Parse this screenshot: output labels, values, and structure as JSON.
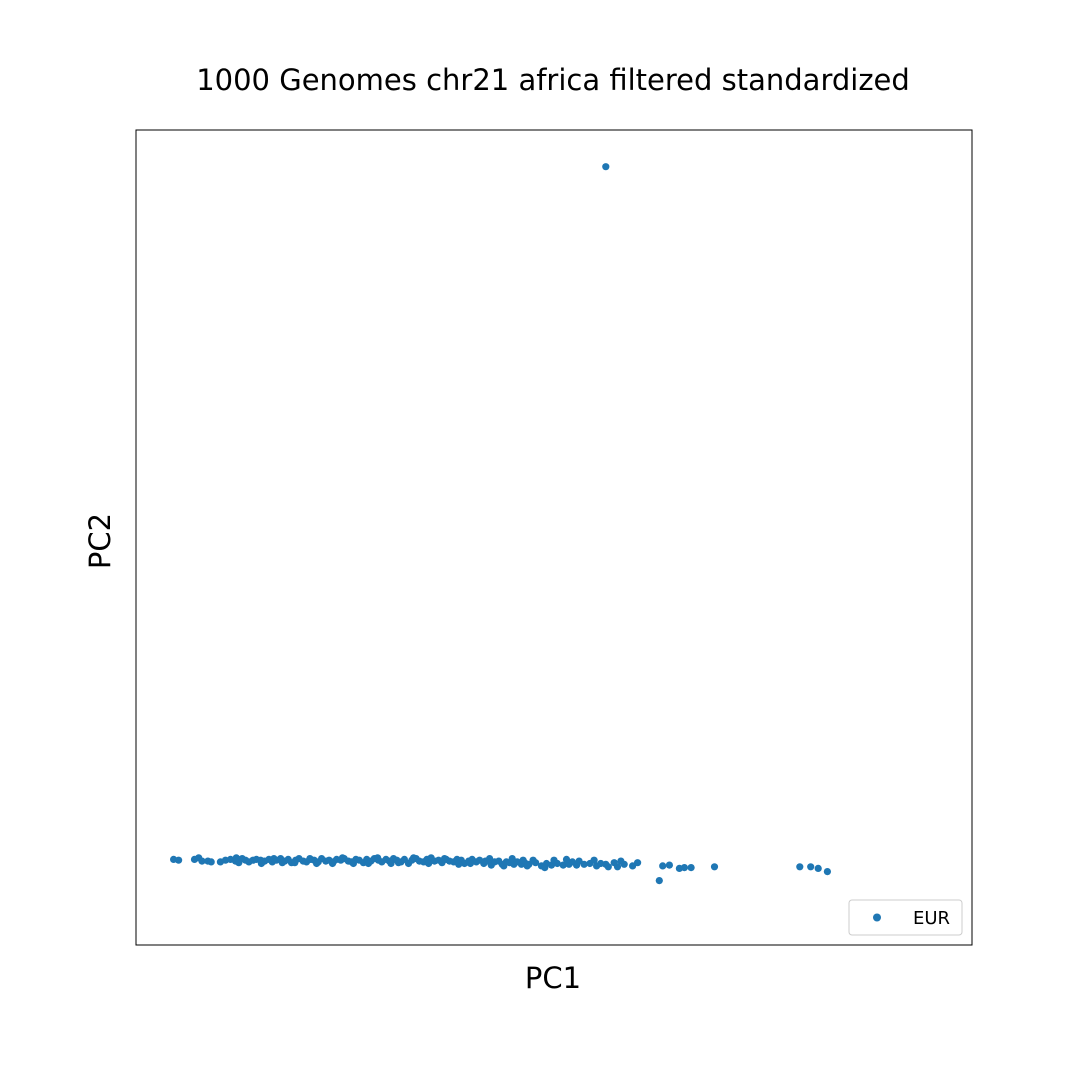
{
  "chart_data": {
    "type": "scatter",
    "title": "1000 Genomes chr21 africa filtered standardized",
    "xlabel": "PC1",
    "ylabel": "PC2",
    "xlim": [
      0,
      100
    ],
    "ylim": [
      0,
      100
    ],
    "ticks_shown": false,
    "grid": false,
    "legend_position": "bottom-right",
    "series": [
      {
        "name": "EUR",
        "color": "#1f77b4",
        "points": [
          [
            4.5,
            10.5
          ],
          [
            5.1,
            10.4
          ],
          [
            7.0,
            10.5
          ],
          [
            7.5,
            10.7
          ],
          [
            7.9,
            10.3
          ],
          [
            8.6,
            10.3
          ],
          [
            10.1,
            10.2
          ],
          [
            10.7,
            10.4
          ],
          [
            11.3,
            10.5
          ],
          [
            11.9,
            10.3
          ],
          [
            12.3,
            10.1
          ],
          [
            12.7,
            10.6
          ],
          [
            13.1,
            10.4
          ],
          [
            13.5,
            10.2
          ],
          [
            14.0,
            10.4
          ],
          [
            14.4,
            10.5
          ],
          [
            14.9,
            10.4
          ],
          [
            15.4,
            10.3
          ],
          [
            15.9,
            10.5
          ],
          [
            16.3,
            10.2
          ],
          [
            16.8,
            10.4
          ],
          [
            17.3,
            10.6
          ],
          [
            17.8,
            10.3
          ],
          [
            18.2,
            10.5
          ],
          [
            18.6,
            10.1
          ],
          [
            19.1,
            10.4
          ],
          [
            19.5,
            10.6
          ],
          [
            20.0,
            10.3
          ],
          [
            20.4,
            10.2
          ],
          [
            20.9,
            10.5
          ],
          [
            21.3,
            10.4
          ],
          [
            21.8,
            10.2
          ],
          [
            22.2,
            10.6
          ],
          [
            22.7,
            10.3
          ],
          [
            23.1,
            10.4
          ],
          [
            23.6,
            10.2
          ],
          [
            24.0,
            10.5
          ],
          [
            24.5,
            10.4
          ],
          [
            24.9,
            10.6
          ],
          [
            25.4,
            10.3
          ],
          [
            25.8,
            10.2
          ],
          [
            26.3,
            10.5
          ],
          [
            26.7,
            10.4
          ],
          [
            27.2,
            10.1
          ],
          [
            27.6,
            10.5
          ],
          [
            28.1,
            10.3
          ],
          [
            28.5,
            10.6
          ],
          [
            29.0,
            10.4
          ],
          [
            29.4,
            10.2
          ],
          [
            29.9,
            10.5
          ],
          [
            30.3,
            10.3
          ],
          [
            30.8,
            10.6
          ],
          [
            31.2,
            10.4
          ],
          [
            31.7,
            10.2
          ],
          [
            32.1,
            10.5
          ],
          [
            32.6,
            10.0
          ],
          [
            33.0,
            10.4
          ],
          [
            33.5,
            10.6
          ],
          [
            33.9,
            10.3
          ],
          [
            34.4,
            10.2
          ],
          [
            34.8,
            10.5
          ],
          [
            35.3,
            10.7
          ],
          [
            35.7,
            10.3
          ],
          [
            36.2,
            10.4
          ],
          [
            36.6,
            10.1
          ],
          [
            37.1,
            10.5
          ],
          [
            37.5,
            10.3
          ],
          [
            38.0,
            10.2
          ],
          [
            38.4,
            10.5
          ],
          [
            38.9,
            10.4
          ],
          [
            39.3,
            10.0
          ],
          [
            39.8,
            10.3
          ],
          [
            40.2,
            10.5
          ],
          [
            40.7,
            10.2
          ],
          [
            41.1,
            10.4
          ],
          [
            41.6,
            10.0
          ],
          [
            42.0,
            10.3
          ],
          [
            42.5,
            9.8
          ],
          [
            42.9,
            10.2
          ],
          [
            43.4,
            10.3
          ],
          [
            43.8,
            9.9
          ],
          [
            44.3,
            10.2
          ],
          [
            44.7,
            10.1
          ],
          [
            45.2,
            9.9
          ],
          [
            45.6,
            10.2
          ],
          [
            46.1,
            9.9
          ],
          [
            46.5,
            10.1
          ],
          [
            47.0,
            9.9
          ],
          [
            47.8,
            10.1
          ],
          [
            48.5,
            9.7
          ],
          [
            49.1,
            10.0
          ],
          [
            49.7,
            9.8
          ],
          [
            50.4,
            10.0
          ],
          [
            51.1,
            9.8
          ],
          [
            51.8,
            9.9
          ],
          [
            52.7,
            9.8
          ],
          [
            53.6,
            9.9
          ],
          [
            54.3,
            10.0
          ],
          [
            55.1,
            9.7
          ],
          [
            56.2,
            9.9
          ],
          [
            60.0,
            10.1
          ],
          [
            63.0,
            9.7
          ],
          [
            63.8,
            9.8
          ],
          [
            65.0,
            9.4
          ],
          [
            65.6,
            9.5
          ],
          [
            66.4,
            9.5
          ],
          [
            69.2,
            9.6
          ],
          [
            79.4,
            9.6
          ],
          [
            80.7,
            9.6
          ],
          [
            81.6,
            9.4
          ],
          [
            82.7,
            9.0
          ],
          [
            62.6,
            7.9
          ],
          [
            15.0,
            10.0
          ],
          [
            19.0,
            10.1
          ],
          [
            23.5,
            10.0
          ],
          [
            27.8,
            10.0
          ],
          [
            31.4,
            10.1
          ],
          [
            35.0,
            10.0
          ],
          [
            38.6,
            9.9
          ],
          [
            41.8,
            10.3
          ],
          [
            44.0,
            9.7
          ],
          [
            46.8,
            9.7
          ],
          [
            48.9,
            9.5
          ],
          [
            52.2,
            10.2
          ],
          [
            55.6,
            10.0
          ],
          [
            58.4,
            9.9
          ],
          [
            59.4,
            9.7
          ],
          [
            58.0,
            10.3
          ],
          [
            57.2,
            10.1
          ],
          [
            53.0,
            10.3
          ],
          [
            50.0,
            10.4
          ],
          [
            46.3,
            10.4
          ],
          [
            42.3,
            10.6
          ],
          [
            36.9,
            10.6
          ],
          [
            33.2,
            10.7
          ],
          [
            28.9,
            10.7
          ],
          [
            24.7,
            10.7
          ],
          [
            20.8,
            10.6
          ],
          [
            16.5,
            10.6
          ],
          [
            12.0,
            10.7
          ],
          [
            9.0,
            10.2
          ],
          [
            30.5,
            10.0
          ],
          [
            26.0,
            10.0
          ],
          [
            21.6,
            10.0
          ],
          [
            17.5,
            10.1
          ],
          [
            40.0,
            10.0
          ],
          [
            45.0,
            10.6
          ],
          [
            47.5,
            10.4
          ],
          [
            51.5,
            10.5
          ],
          [
            54.8,
            10.4
          ],
          [
            56.5,
            9.6
          ],
          [
            57.6,
            9.6
          ],
          [
            56.2,
            95.5
          ]
        ]
      }
    ]
  }
}
